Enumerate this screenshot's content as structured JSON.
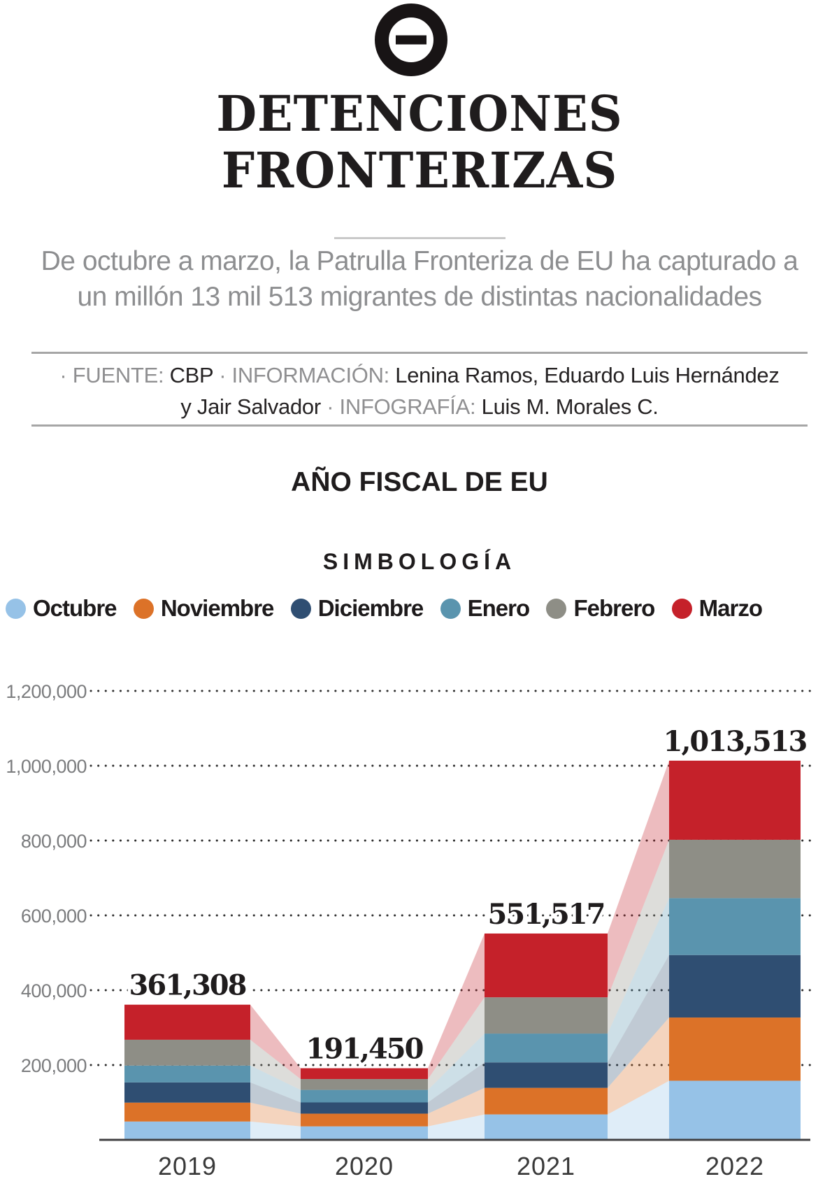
{
  "header": {
    "logo_icon": "circle-minus-logo",
    "title_line1": "DETENCIONES",
    "title_line2": "FRONTERIZAS",
    "subtitle_line1": "De octubre a marzo, la Patrulla Fronteriza de EU ha capturado a",
    "subtitle_line2": "un millón 13 mil 513 migrantes de distintas nacionalidades",
    "credits_lines": [
      [
        {
          "text": "· FUENTE: ",
          "muted": true
        },
        {
          "text": "CBP",
          "muted": false
        },
        {
          "text": " · INFORMACIÓN: ",
          "muted": true
        },
        {
          "text": "Lenina Ramos, Eduardo Luis Hernández",
          "muted": false
        }
      ],
      [
        {
          "text": "y Jair Salvador",
          "muted": false
        },
        {
          "text": " · INFOGRAFÍA: ",
          "muted": true
        },
        {
          "text": "Luis M. Morales C.",
          "muted": false
        }
      ]
    ]
  },
  "section": {
    "fiscal_year_heading": "AÑO FISCAL DE EU",
    "legend_heading": "SIMBOLOGÍA"
  },
  "chart_data": {
    "type": "bar",
    "variant": "stacked-with-flow-links",
    "categories": [
      "2019",
      "2020",
      "2021",
      "2022"
    ],
    "series": [
      {
        "name": "Octubre",
        "color": "#96C2E7",
        "values": [
          49000,
          36000,
          68000,
          158000
        ]
      },
      {
        "name": "Noviembre",
        "color": "#DC7228",
        "values": [
          50500,
          34000,
          71000,
          169000
        ]
      },
      {
        "name": "Diciembre",
        "color": "#2F4E72",
        "values": [
          54000,
          30000,
          68000,
          167000
        ]
      },
      {
        "name": "Enero",
        "color": "#5A94AE",
        "values": [
          45000,
          33500,
          77000,
          152000
        ]
      },
      {
        "name": "Febrero",
        "color": "#8E8E86",
        "values": [
          69000,
          29000,
          97000,
          156000
        ]
      },
      {
        "name": "Marzo",
        "color": "#C5212A",
        "values": [
          93808,
          28950,
          170517,
          211513
        ]
      }
    ],
    "totals": [
      361308,
      191450,
      551517,
      1013513
    ],
    "total_labels": [
      "361,308",
      "191,450",
      "551,517",
      "1,013,513"
    ],
    "ytick_values": [
      200000,
      400000,
      600000,
      800000,
      1000000,
      1200000
    ],
    "ytick_labels": [
      "200,000",
      "400,000",
      "600,000",
      "800,000",
      "1,000,000",
      "1,200,000"
    ],
    "ylim": [
      0,
      1200000
    ],
    "gridlines": "dotted",
    "legend_position": "top",
    "flow_opacity": 0.3
  }
}
